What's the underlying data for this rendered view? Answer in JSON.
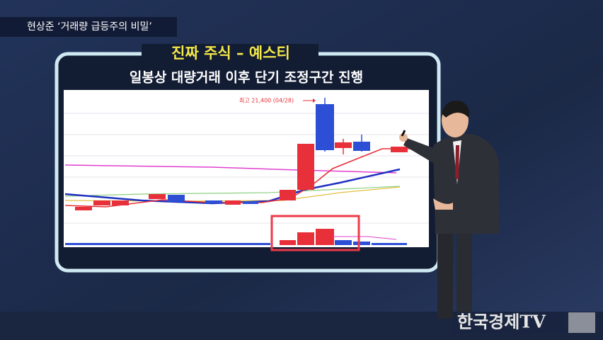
{
  "header": {
    "caption": "현상준 ‘거래량 급등주의 비밀’"
  },
  "screen": {
    "title": "진짜 주식 – 예스티",
    "subtitle": "일봉상 대량거래 이후 단기 조정구간 진행",
    "annotation": "최고 21,400 (04/28)"
  },
  "logo": {
    "text": "한국경제TV"
  }
}
